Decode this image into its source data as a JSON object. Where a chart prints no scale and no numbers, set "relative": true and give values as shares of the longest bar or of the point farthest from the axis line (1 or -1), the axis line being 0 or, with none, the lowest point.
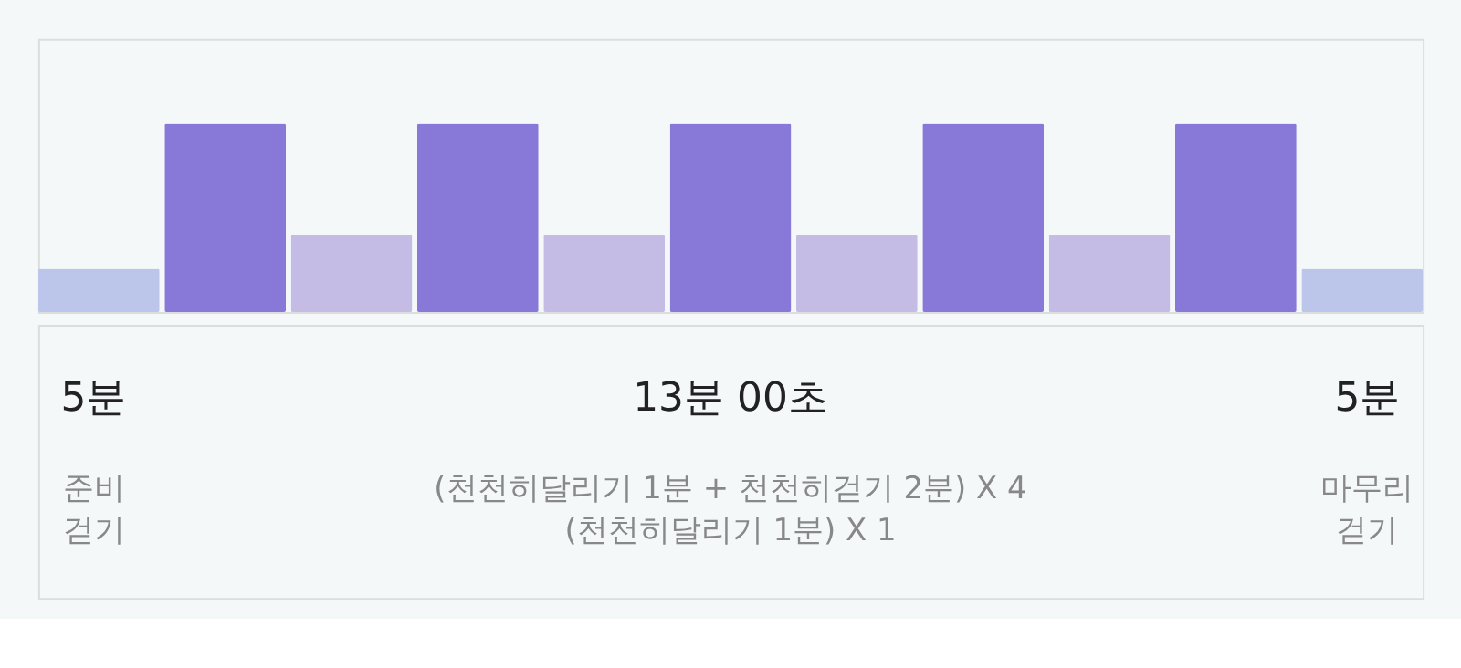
{
  "chart_data": {
    "type": "bar",
    "relative": true,
    "tick_labels": false,
    "categories": [
      null,
      null,
      null,
      null,
      null,
      null,
      null,
      null,
      null,
      null,
      null
    ],
    "values": [
      0.23,
      1,
      0.41,
      1,
      0.41,
      1,
      0.41,
      1,
      0.41,
      1,
      0.23
    ],
    "colors": [
      "#bcc6eb",
      "#8878d8",
      "#c5bce6",
      "#8878d8",
      "#c5bce6",
      "#8878d8",
      "#c5bce6",
      "#8878d8",
      "#c5bce6",
      "#8878d8",
      "#bcc6eb"
    ],
    "annotations": [
      "5분",
      "준비\n걷기",
      "13분 00초",
      "(천천히달리기 1분 + 천천히걷기 2분) X 4\n(천천히달리기 1분) X 1",
      "5분",
      "마무리\n걷기"
    ]
  }
}
